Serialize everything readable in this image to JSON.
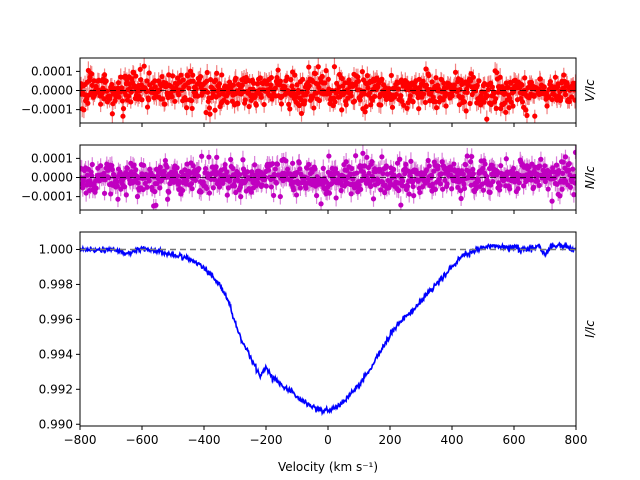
{
  "chart_data": {
    "type": "scatter",
    "xlabel": "Velocity (km s⁻¹)",
    "xlim": [
      -800,
      800
    ],
    "x_ticks": [
      -800,
      -600,
      -400,
      -200,
      0,
      200,
      400,
      600,
      800
    ],
    "x_tick_labels": [
      "−800",
      "−600",
      "−400",
      "−200",
      "0",
      "200",
      "400",
      "600",
      "800"
    ],
    "panels": [
      {
        "id": "V",
        "ylabel": "V/Ic",
        "ylim": [
          -0.00017,
          0.00017
        ],
        "y_ticks": [
          0.0001,
          0.0,
          -0.0001
        ],
        "y_tick_labels": [
          "0.0001",
          "0.0000",
          "−0.0001"
        ],
        "color": "#ff0000",
        "errbar_color": "#f28080",
        "reference_line": 0.0,
        "series": [
          {
            "type": "noise_scatter",
            "x_start": -800,
            "x_end": 800,
            "x_step": 1.8,
            "center": 0.0,
            "scatter_sd": 4.5e-05,
            "error_bar": 4e-05
          }
        ]
      },
      {
        "id": "N",
        "ylabel": "N/Ic",
        "ylim": [
          -0.00017,
          0.00017
        ],
        "y_ticks": [
          0.0001,
          0.0,
          -0.0001
        ],
        "y_tick_labels": [
          "0.0001",
          "0.0000",
          "−0.0001"
        ],
        "color": "#c000c0",
        "errbar_color": "#d980d9",
        "reference_line": 0.0,
        "series": [
          {
            "type": "noise_scatter",
            "x_start": -800,
            "x_end": 800,
            "x_step": 1.8,
            "center": 0.0,
            "scatter_sd": 4.5e-05,
            "error_bar": 4e-05
          }
        ]
      },
      {
        "id": "I",
        "ylabel": "I/Ic",
        "ylim": [
          0.9899,
          1.001
        ],
        "y_ticks": [
          1.0,
          0.998,
          0.996,
          0.994,
          0.992,
          0.99
        ],
        "y_tick_labels": [
          "1.000",
          "0.998",
          "0.996",
          "0.994",
          "0.992",
          "0.990"
        ],
        "color": "#0000ff",
        "reference_line": 1.0,
        "series": [
          {
            "name": "I/Ic profile",
            "x": [
              -800,
              -700,
              -650,
              -600,
              -550,
              -500,
              -450,
              -400,
              -350,
              -320,
              -300,
              -280,
              -260,
              -240,
              -220,
              -200,
              -180,
              -160,
              -140,
              -120,
              -100,
              -80,
              -60,
              -40,
              -20,
              0,
              20,
              40,
              60,
              80,
              100,
              120,
              140,
              160,
              180,
              200,
              220,
              240,
              260,
              280,
              300,
              320,
              340,
              360,
              380,
              400,
              420,
              440,
              460,
              480,
              500,
              520,
              540,
              560,
              600,
              640,
              680,
              700,
              720,
              760,
              800
            ],
            "y": [
              1.0,
              1.0,
              0.9998,
              1.0,
              0.9999,
              0.9997,
              0.9995,
              0.999,
              0.998,
              0.997,
              0.9958,
              0.9948,
              0.9942,
              0.9935,
              0.9928,
              0.9932,
              0.9927,
              0.9924,
              0.9921,
              0.9919,
              0.9916,
              0.9913,
              0.9911,
              0.9909,
              0.9908,
              0.9908,
              0.9909,
              0.9911,
              0.9915,
              0.9919,
              0.9922,
              0.9928,
              0.9932,
              0.9939,
              0.9945,
              0.9951,
              0.9956,
              0.996,
              0.9963,
              0.9966,
              0.997,
              0.9975,
              0.9978,
              0.9982,
              0.9986,
              0.999,
              0.9994,
              0.9997,
              0.9998,
              1.0,
              1.0001,
              1.0002,
              1.0002,
              1.0001,
              1.0001,
              1.0,
              1.0002,
              0.9996,
              1.0002,
              1.0002,
              1.0
            ],
            "scatter_sd": 8e-05,
            "error_bar": 6e-05
          }
        ]
      }
    ]
  }
}
